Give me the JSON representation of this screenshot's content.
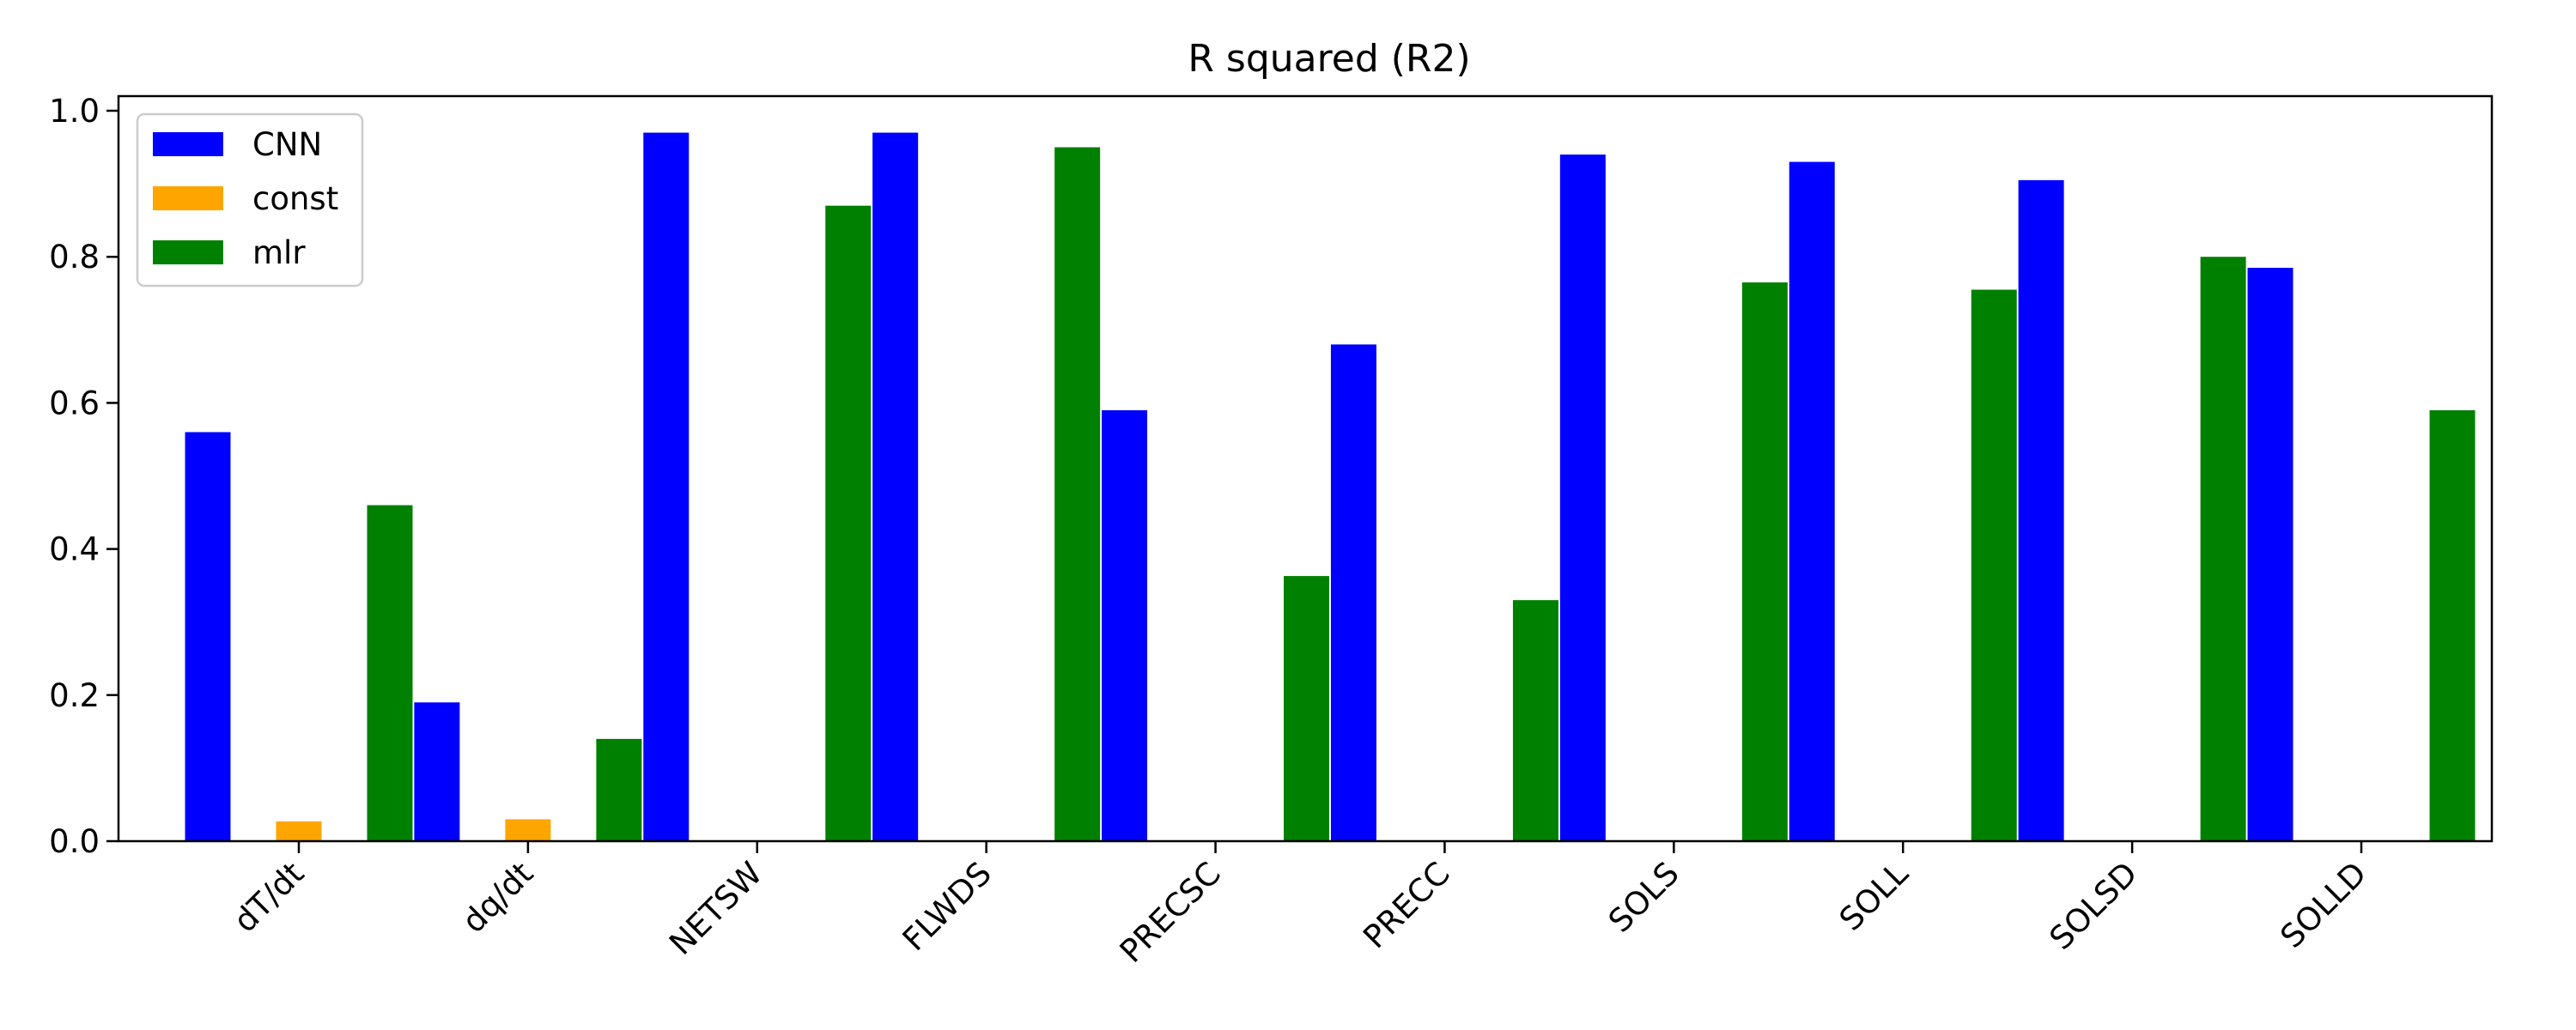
{
  "chart_data": {
    "type": "bar",
    "title": "R squared (R2)",
    "xlabel": "",
    "ylabel": "",
    "categories": [
      "dT/dt",
      "dq/dt",
      "NETSW",
      "FLWDS",
      "PRECSC",
      "PRECC",
      "SOLS",
      "SOLL",
      "SOLSD",
      "SOLLD"
    ],
    "series": [
      {
        "name": "CNN",
        "color": "#0000ff",
        "values": [
          0.56,
          0.19,
          0.97,
          0.97,
          0.59,
          0.68,
          0.94,
          0.93,
          0.905,
          0.785
        ]
      },
      {
        "name": "const",
        "color": "#ffa500",
        "values": [
          0.027,
          0.03,
          0,
          0,
          0,
          0,
          0,
          0,
          0,
          0
        ]
      },
      {
        "name": "mlr",
        "color": "#008000",
        "values": [
          0.46,
          0.14,
          0.87,
          0.95,
          0.363,
          0.33,
          0.765,
          0.755,
          0.8,
          0.59
        ]
      }
    ],
    "ylim": [
      0,
      1.02
    ],
    "yticks": [
      0.0,
      0.2,
      0.4,
      0.6,
      0.8,
      1.0
    ],
    "ytick_labels": [
      "0.0",
      "0.2",
      "0.4",
      "0.6",
      "0.8",
      "1.0"
    ],
    "grid": false,
    "legend_position": "top-left"
  }
}
